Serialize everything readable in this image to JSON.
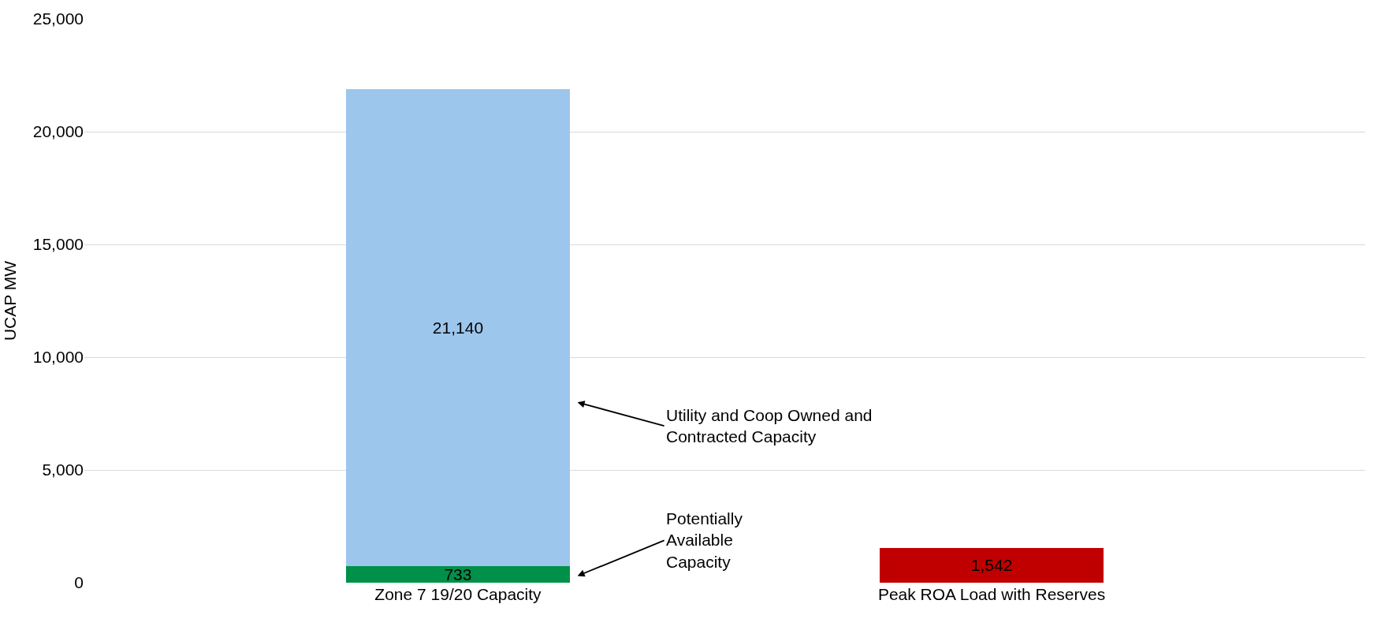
{
  "chart_data": {
    "type": "bar",
    "stacked": true,
    "ylabel": "UCAP MW",
    "categories": [
      "Zone 7 19/20 Capacity",
      "Peak ROA Load with Reserves"
    ],
    "series": [
      {
        "color": "#00904a",
        "values": [
          733,
          null
        ],
        "value_labels": [
          "733",
          null
        ]
      },
      {
        "color": "#9dc6ec",
        "values": [
          21140,
          null
        ],
        "value_labels": [
          "21,140",
          null
        ]
      },
      {
        "color": "#c00000",
        "values": [
          null,
          1542
        ],
        "value_labels": [
          null,
          "1,542"
        ]
      }
    ],
    "ylim": [
      0,
      25000
    ],
    "yticks": [
      {
        "value": 0,
        "label": "0"
      },
      {
        "value": 5000,
        "label": "5,000"
      },
      {
        "value": 10000,
        "label": "10,000"
      },
      {
        "value": 15000,
        "label": "15,000"
      },
      {
        "value": 20000,
        "label": "20,000"
      },
      {
        "value": 25000,
        "label": "25,000"
      }
    ],
    "grid": "y",
    "annotations": [
      "Utility and Coop Owned and\nContracted Capacity",
      "Potentially\nAvailable\nCapacity"
    ]
  }
}
